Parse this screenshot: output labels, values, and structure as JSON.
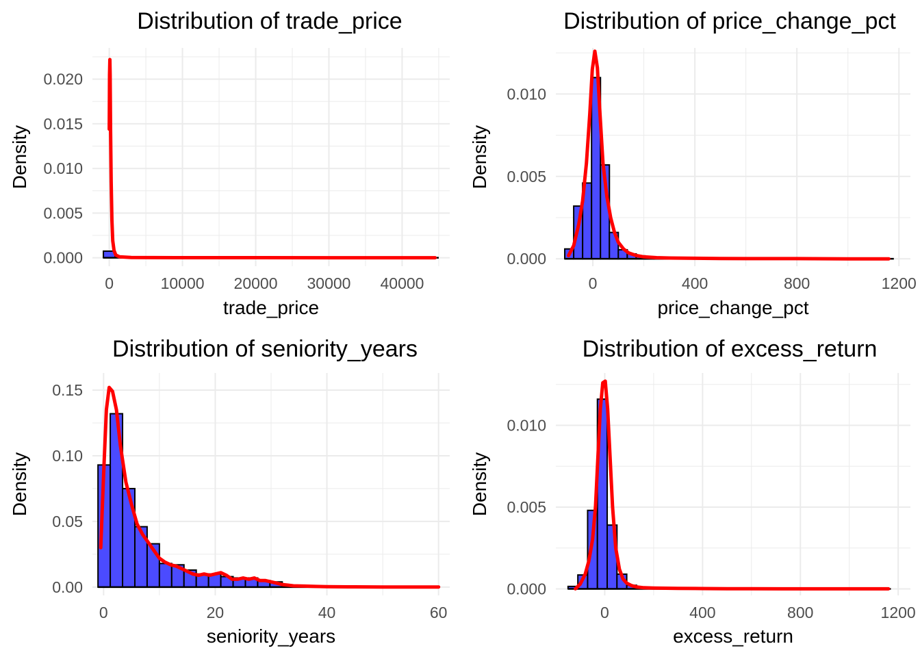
{
  "chart_data": [
    {
      "type": "histogram",
      "title": "Distribution of trade_price",
      "xlabel": "trade_price",
      "ylabel": "Density",
      "xlim": [
        -2300,
        46500
      ],
      "ylim": [
        -0.00095,
        0.0235
      ],
      "x_ticks": [
        0,
        10000,
        20000,
        30000,
        40000
      ],
      "y_ticks": [
        0.0,
        0.005,
        0.01,
        0.015,
        0.02
      ],
      "x_tick_labels": [
        "0",
        "10000",
        "20000",
        "30000",
        "40000"
      ],
      "y_tick_labels": [
        "0.000",
        "0.005",
        "0.010",
        "0.015",
        "0.020"
      ],
      "bins": {
        "edges": [
          -800,
          800
        ],
        "values": [
          0.00074
        ]
      },
      "baseline_range": [
        -800,
        45000
      ],
      "density": {
        "x": [
          0,
          40,
          80,
          120,
          180,
          260,
          360,
          480,
          650,
          900,
          1400,
          3000,
          10000,
          20000,
          30000,
          40000,
          44500
        ],
        "y": [
          0.0144,
          0.0205,
          0.0222,
          0.0205,
          0.0145,
          0.0085,
          0.0042,
          0.0019,
          0.0008,
          0.0003,
          0.0001,
          3e-05,
          1e-05,
          5e-06,
          0.0,
          0.0,
          0.0
        ]
      },
      "grid": true
    },
    {
      "type": "histogram",
      "title": "Distribution of price_change_pct",
      "xlabel": "price_change_pct",
      "ylabel": "Density",
      "xlim": [
        -145,
        1245
      ],
      "ylim": [
        -0.00045,
        0.0128
      ],
      "x_ticks": [
        0,
        400,
        800,
        1200
      ],
      "y_ticks": [
        0.0,
        0.005,
        0.01
      ],
      "x_tick_labels": [
        "0",
        "400",
        "800",
        "1200"
      ],
      "y_tick_labels": [
        "0.000",
        "0.005",
        "0.010"
      ],
      "bins": {
        "edges": [
          -110,
          -75,
          -40,
          -5,
          30,
          65,
          100,
          135,
          170,
          205,
          240,
          275
        ],
        "values": [
          0.0006,
          0.0032,
          0.0046,
          0.011,
          0.0057,
          0.0016,
          0.00055,
          0.0003,
          0.00018,
          0.0001,
          6e-05
        ]
      },
      "baseline_range": [
        -110,
        1180
      ],
      "density": {
        "x": [
          -95,
          -75,
          -55,
          -40,
          -25,
          -12,
          -2,
          8,
          18,
          28,
          40,
          55,
          70,
          85,
          100,
          120,
          140,
          170,
          200,
          250,
          300,
          400,
          500,
          600,
          800,
          1000,
          1160
        ],
        "y": [
          0.0002,
          0.0008,
          0.0021,
          0.0035,
          0.0058,
          0.0088,
          0.0115,
          0.0126,
          0.0116,
          0.0088,
          0.0058,
          0.0038,
          0.0025,
          0.0016,
          0.001,
          0.0006,
          0.00036,
          0.0002,
          0.00012,
          7e-05,
          5e-05,
          3e-05,
          2e-05,
          1e-05,
          1e-05,
          0.0,
          0.0
        ]
      },
      "grid": true
    },
    {
      "type": "histogram",
      "title": "Distribution of seniority_years",
      "xlabel": "seniority_years",
      "ylabel": "Density",
      "xlim": [
        -2,
        62
      ],
      "ylim": [
        -0.0063,
        0.163
      ],
      "x_ticks": [
        0,
        20,
        40,
        60
      ],
      "y_ticks": [
        0.0,
        0.05,
        0.1,
        0.15
      ],
      "x_tick_labels": [
        "0",
        "20",
        "40",
        "60"
      ],
      "y_tick_labels": [
        "0.00",
        "0.05",
        "0.10",
        "0.15"
      ],
      "bins": {
        "edges": [
          -1,
          1.2,
          3.4,
          5.6,
          7.8,
          10,
          12.2,
          14.4,
          16.6,
          18.8,
          21,
          23.2,
          25.4,
          27.6,
          29.8,
          32
        ],
        "values": [
          0.093,
          0.132,
          0.075,
          0.046,
          0.033,
          0.018,
          0.017,
          0.013,
          0.01,
          0.01,
          0.008,
          0.007,
          0.007,
          0.005,
          0.004
        ]
      },
      "baseline_range": [
        -1,
        60
      ],
      "density": {
        "x": [
          -0.5,
          0,
          0.5,
          1,
          1.6,
          2.3,
          3,
          4,
          5,
          6,
          7,
          8,
          9,
          10,
          11,
          12,
          13,
          14,
          15,
          16,
          17,
          18,
          19,
          20,
          21,
          22,
          23,
          24,
          25,
          26,
          27,
          28,
          29,
          30,
          31,
          32,
          33,
          34,
          36,
          38,
          40,
          45,
          50,
          55,
          60
        ],
        "y": [
          0.03,
          0.085,
          0.135,
          0.152,
          0.149,
          0.135,
          0.108,
          0.08,
          0.063,
          0.048,
          0.04,
          0.034,
          0.028,
          0.022,
          0.019,
          0.017,
          0.016,
          0.014,
          0.012,
          0.01,
          0.009,
          0.01,
          0.009,
          0.01,
          0.011,
          0.009,
          0.006,
          0.006,
          0.007,
          0.006,
          0.007,
          0.005,
          0.005,
          0.004,
          0.003,
          0.002,
          0.0015,
          0.001,
          0.0008,
          0.0005,
          0.0003,
          0.0002,
          0.0001,
          0.0001,
          0.0001
        ]
      },
      "grid": true
    },
    {
      "type": "histogram",
      "title": "Distribution of excess_return",
      "xlabel": "excess_return",
      "ylabel": "Density",
      "xlim": [
        -200,
        1250
      ],
      "ylim": [
        -0.0004,
        0.0132
      ],
      "x_ticks": [
        0,
        400,
        800,
        1200
      ],
      "y_ticks": [
        0.0,
        0.005,
        0.01
      ],
      "x_tick_labels": [
        "0",
        "400",
        "800",
        "1200"
      ],
      "y_tick_labels": [
        "0.000",
        "0.005",
        "0.010"
      ],
      "bins": {
        "edges": [
          -150,
          -110,
          -70,
          -30,
          10,
          50,
          90,
          130,
          170,
          210,
          250
        ],
        "values": [
          0.00015,
          0.00085,
          0.0048,
          0.0116,
          0.0039,
          0.0009,
          0.00022,
          0.0001,
          5e-05,
          3e-05
        ]
      },
      "baseline_range": [
        -150,
        1170
      ],
      "density": {
        "x": [
          -120,
          -100,
          -80,
          -65,
          -50,
          -38,
          -28,
          -18,
          -8,
          2,
          12,
          22,
          32,
          45,
          60,
          75,
          90,
          110,
          130,
          160,
          200,
          250,
          300,
          400,
          500,
          600,
          800,
          1000,
          1160
        ],
        "y": [
          0.0,
          0.0003,
          0.0009,
          0.0017,
          0.003,
          0.005,
          0.008,
          0.011,
          0.0126,
          0.0127,
          0.011,
          0.008,
          0.005,
          0.0025,
          0.0012,
          0.0006,
          0.00035,
          0.0002,
          0.00012,
          7e-05,
          5e-05,
          4e-05,
          3e-05,
          2e-05,
          1e-05,
          1e-05,
          0.0,
          0.0,
          0.0
        ]
      },
      "grid": true
    }
  ]
}
